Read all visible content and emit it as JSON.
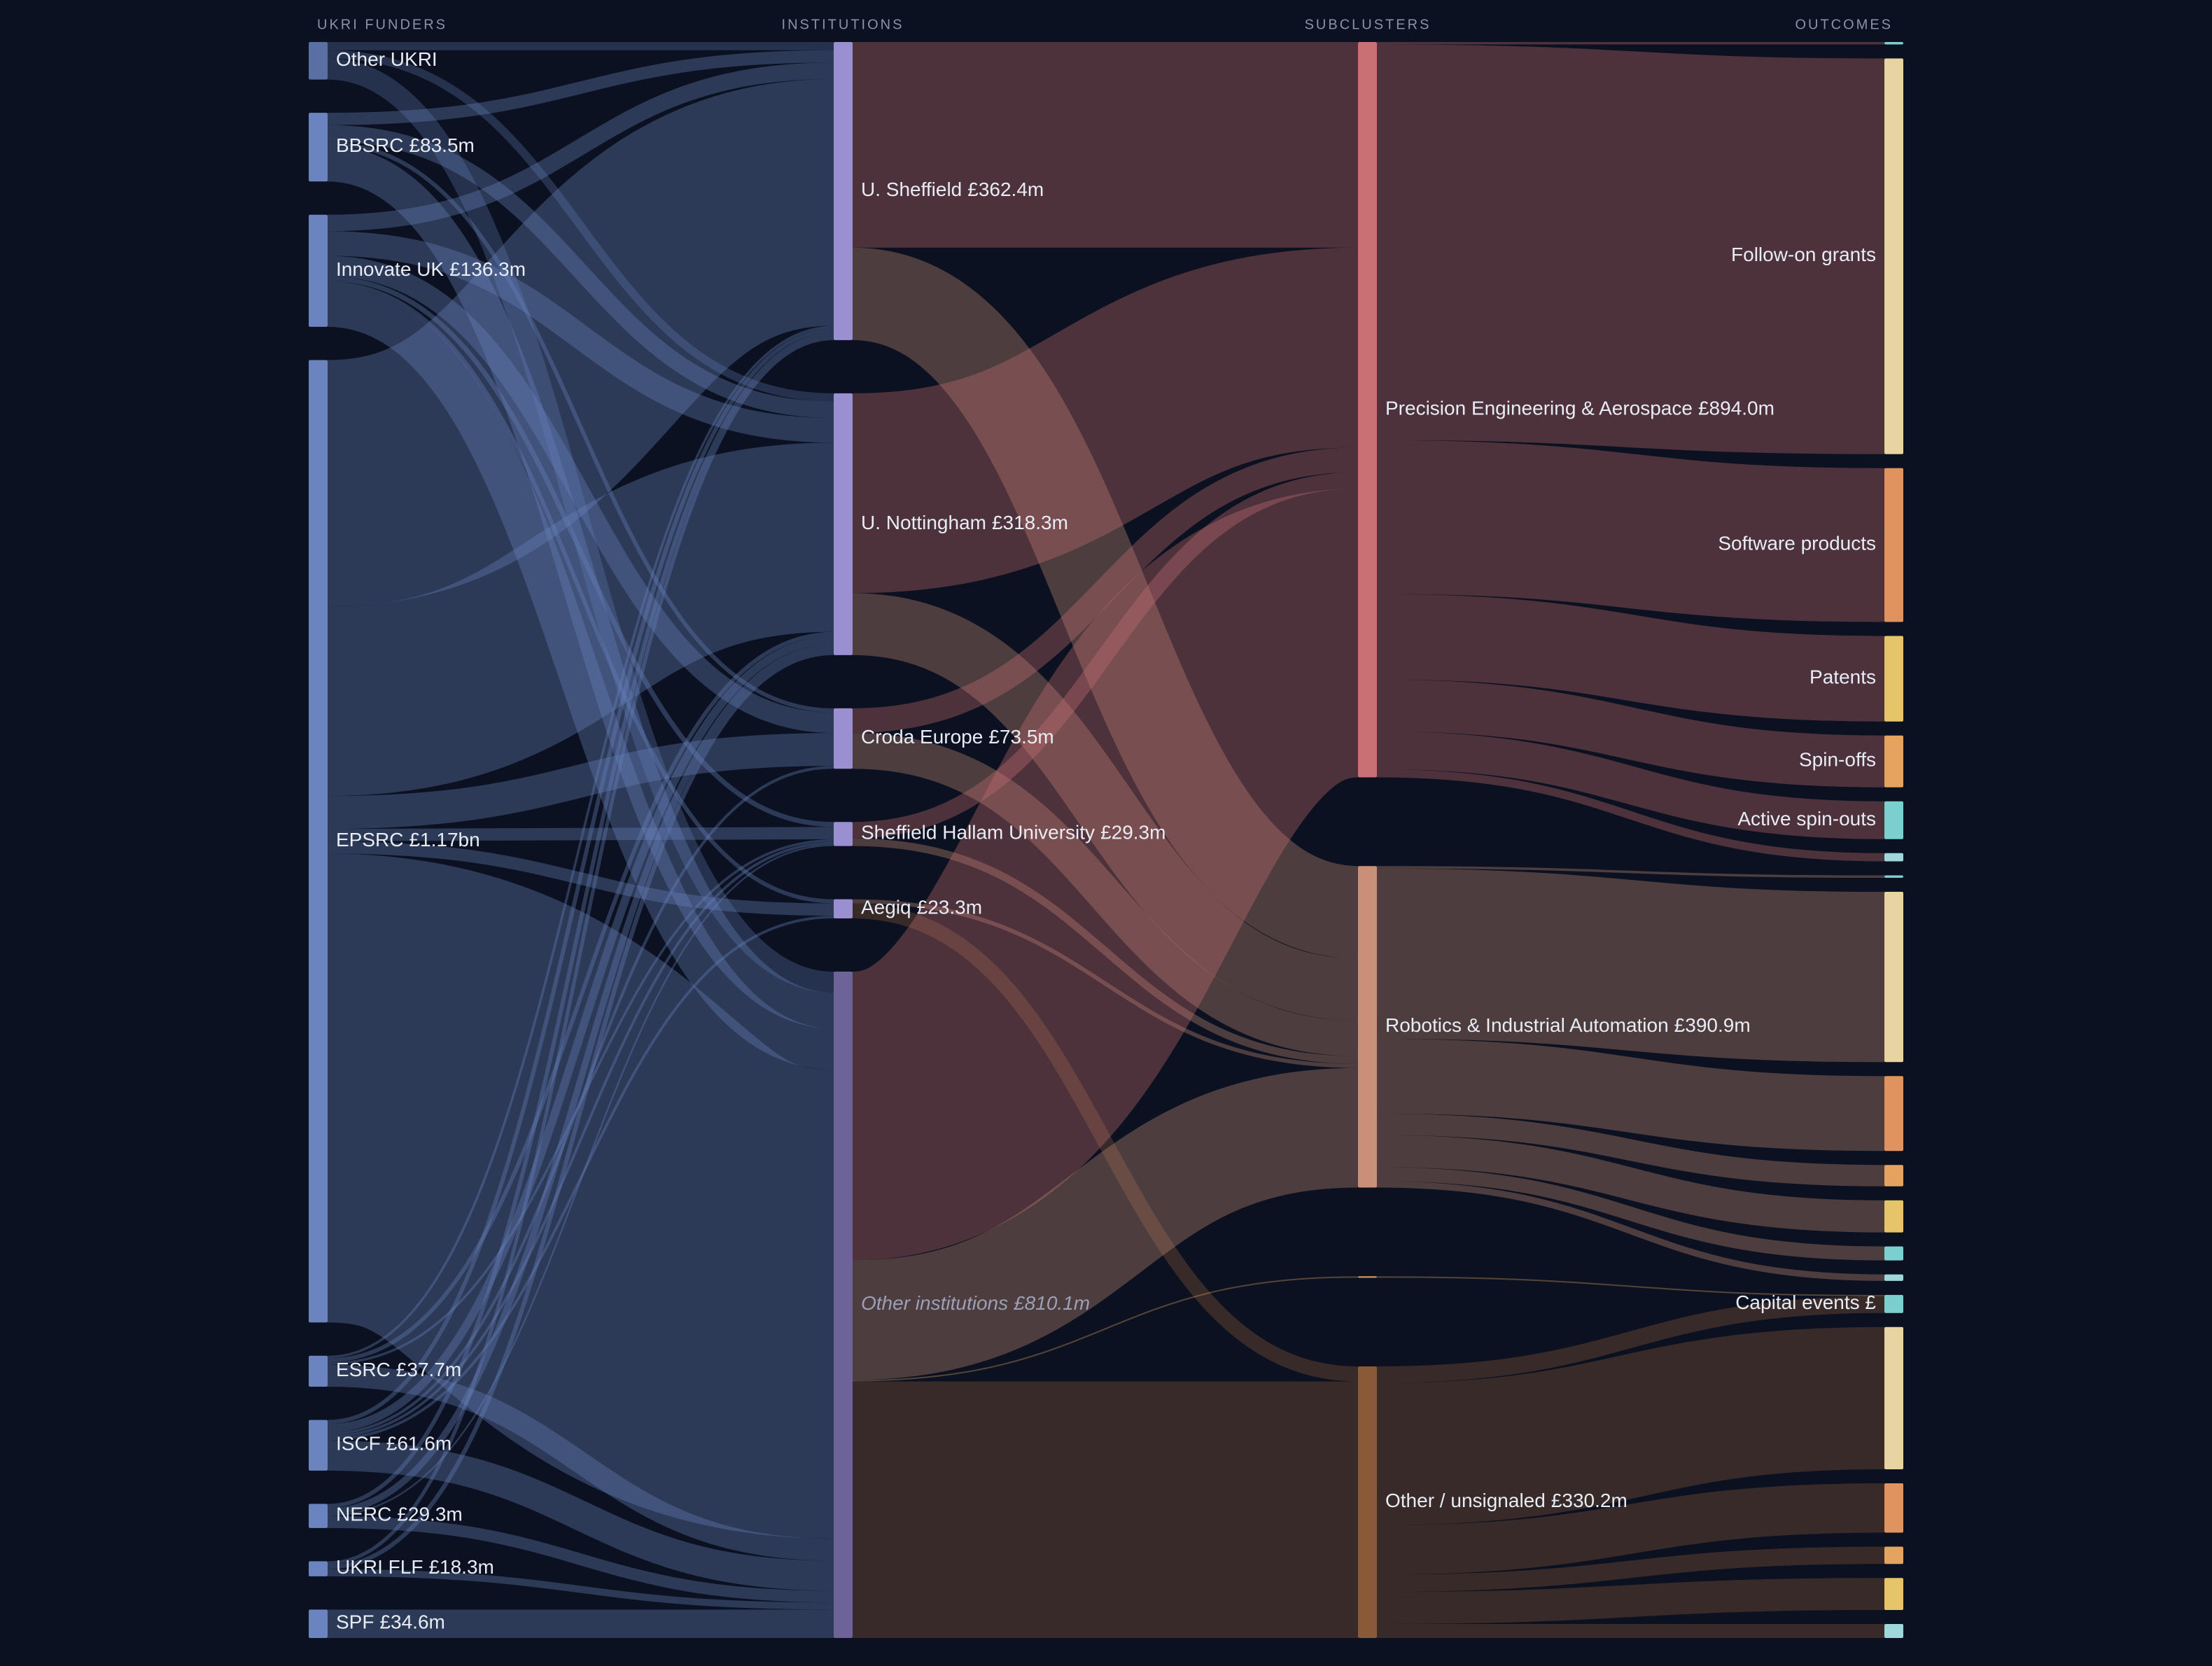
{
  "chart_data": {
    "type": "sankey",
    "columns": [
      {
        "title": "UKRI FUNDERS",
        "link_color": "source",
        "nodes": [
          {
            "name": "Other UKRI",
            "value": 45.6,
            "color": "#5a6fa3",
            "flows": [
              10,
              10,
              0,
              0,
              0,
              25.6
            ]
          },
          {
            "name": "BBSRC",
            "value": 83.5,
            "value_label": "£83.5m",
            "color": "#6b84c0",
            "flows": [
              15,
              20,
              5,
              0,
              0,
              43.5
            ]
          },
          {
            "name": "Innovate UK",
            "value": 136.3,
            "value_label": "£136.3m",
            "color": "#6b84c0",
            "flows": [
              20,
              30,
              25,
              6,
              5,
              50.3
            ]
          },
          {
            "name": "EPSRC",
            "value": 1170,
            "value_label": "£1.17bn",
            "color": "#6b84c0",
            "flows": [
              300,
              230,
              40,
              15,
              15,
              570
            ]
          },
          {
            "name": "ESRC",
            "value": 37.7,
            "value_label": "£37.7m",
            "color": "#6b84c0",
            "flows": [
              3,
              5,
              0,
              3,
              0,
              26.7
            ]
          },
          {
            "name": "ISCF",
            "value": 61.6,
            "value_label": "£61.6m",
            "color": "#6b84c0",
            "flows": [
              5,
              10,
              3.5,
              3.3,
              3.3,
              36.5
            ]
          },
          {
            "name": "NERC",
            "value": 29.3,
            "value_label": "£29.3m",
            "color": "#6b84c0",
            "flows": [
              5,
              8,
              0,
              2,
              0,
              14.3
            ]
          },
          {
            "name": "UKRI FLF",
            "value": 18.3,
            "value_label": "£18.3m",
            "color": "#6b84c0",
            "flows": [
              4.4,
              5.3,
              0,
              0,
              0,
              8.6
            ]
          },
          {
            "name": "SPF",
            "value": 34.6,
            "value_label": "£34.6m",
            "color": "#6b84c0",
            "flows": [
              0,
              0,
              0,
              0,
              0,
              34.6
            ]
          }
        ]
      },
      {
        "title": "INSTITUTIONS",
        "link_color": "target",
        "nodes": [
          {
            "name": "U. Sheffield",
            "value": 362.4,
            "value_label": "£362.4m",
            "color": "#9a8fd0",
            "flows": [
              250,
              112.4,
              0,
              0
            ]
          },
          {
            "name": "U. Nottingham",
            "value": 318.3,
            "value_label": "£318.3m",
            "color": "#9a8fd0",
            "flows": [
              243,
              75.3,
              0,
              0
            ]
          },
          {
            "name": "Croda Europe",
            "value": 73.5,
            "value_label": "£73.5m",
            "color": "#9a8fd0",
            "flows": [
              30,
              43.5,
              0,
              0
            ]
          },
          {
            "name": "Sheffield Hallam University",
            "value": 29.3,
            "value_label": "£29.3m",
            "color": "#9a8fd0",
            "flows": [
              20,
              9.3,
              0,
              0
            ]
          },
          {
            "name": "Aegiq",
            "value": 23.3,
            "value_label": "£23.3m",
            "color": "#9a8fd0",
            "flows": [
              0,
              5,
              0,
              18.3
            ]
          },
          {
            "name": "Other institutions",
            "value": 810.1,
            "value_label": "£810.1m",
            "color": "#6d6399",
            "italic": true,
            "flows": [
              351,
              145.4,
              1.8,
              311.9
            ]
          }
        ]
      },
      {
        "title": "SUBCLUSTERS",
        "link_color": "source",
        "nodes": [
          {
            "name": "Precision Engineering & Aerospace",
            "value": 894,
            "value_label": "£894.0m",
            "color": "#c87074",
            "flows": [
              3,
              481,
              187,
              104,
              63,
              46,
              10,
              0,
              0,
              0,
              0,
              0,
              0,
              0,
              0,
              0,
              0,
              0,
              0,
              0
            ]
          },
          {
            "name": "Robotics & Industrial Automation",
            "value": 390.9,
            "value_label": "£390.9m",
            "color": "#c98f78",
            "flows": [
              0,
              0,
              0,
              0,
              0,
              0,
              0,
              3,
              207,
              91,
              26,
              39,
              17,
              7.9,
              0,
              0,
              0,
              0,
              0,
              0
            ]
          },
          {
            "name": null,
            "value": 1.8,
            "color": "#d9a060",
            "flows": [
              0,
              0,
              0,
              0,
              0,
              0,
              0,
              0,
              0,
              0,
              0,
              0,
              0,
              0,
              1.8,
              0,
              0,
              0,
              0,
              0
            ]
          },
          {
            "name": "Other / unsignaled",
            "value": 330.2,
            "value_label": "£330.2m",
            "color": "#8a5a38",
            "flows": [
              0,
              0,
              0,
              0,
              0,
              0,
              0,
              0,
              0,
              0,
              0,
              0,
              0,
              0,
              20.2,
              173,
              60,
              21,
              39,
              17
            ]
          }
        ]
      },
      {
        "title": "OUTCOMES",
        "nodes": [
          {
            "name": null,
            "value": 3,
            "color": "#7ccfcf"
          },
          {
            "name": "Follow-on grants",
            "value": 481,
            "color": "#e8d3a2"
          },
          {
            "name": "Software products",
            "value": 187,
            "color": "#e0925f"
          },
          {
            "name": "Patents",
            "value": 104,
            "color": "#e6c56a"
          },
          {
            "name": "Spin-offs",
            "value": 63,
            "color": "#e4a35e"
          },
          {
            "name": "Active spin-outs",
            "value": 46,
            "color": "#7ccfcf"
          },
          {
            "name": null,
            "value": 10,
            "color": "#9fd8dc"
          },
          {
            "name": null,
            "value": 3,
            "color": "#7ccfcf"
          },
          {
            "name": null,
            "value": 207,
            "color": "#e8d3a2"
          },
          {
            "name": null,
            "value": 91,
            "color": "#e0925f"
          },
          {
            "name": null,
            "value": 26,
            "color": "#e4a35e"
          },
          {
            "name": null,
            "value": 39,
            "color": "#e6c56a"
          },
          {
            "name": null,
            "value": 17,
            "color": "#7ccfcf"
          },
          {
            "name": null,
            "value": 7.9,
            "color": "#9fd8dc"
          },
          {
            "name": "Capital events £",
            "value": 22,
            "color": "#7ccfcf"
          },
          {
            "name": null,
            "value": 173,
            "color": "#e8d3a2"
          },
          {
            "name": null,
            "value": 60,
            "color": "#e0925f"
          },
          {
            "name": null,
            "value": 21,
            "color": "#e4a35e"
          },
          {
            "name": null,
            "value": 39,
            "color": "#e6c56a"
          },
          {
            "name": null,
            "value": 17,
            "color": "#9fd8dc"
          }
        ]
      }
    ]
  }
}
